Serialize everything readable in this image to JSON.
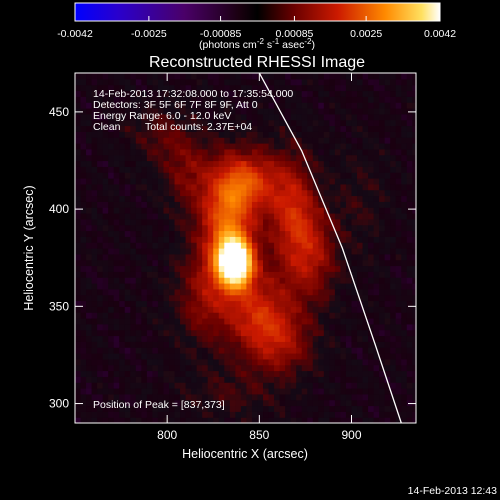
{
  "chart_data": {
    "type": "heatmap",
    "title": "Reconstructed RHESSI Image",
    "xlabel": "Heliocentric X (arcsec)",
    "ylabel": "Heliocentric Y (arcsec)",
    "xlim": [
      750,
      935
    ],
    "ylim": [
      290,
      470
    ],
    "xticks": [
      800,
      850,
      900
    ],
    "yticks": [
      300,
      350,
      400,
      450
    ],
    "grid": false,
    "colorbar": {
      "range": [
        -0.0042,
        0.0042
      ],
      "tick_values": [
        -0.0042,
        -0.0025,
        -0.00085,
        0.00085,
        0.0025,
        0.0042
      ],
      "tick_labels": [
        "-0.0042",
        "-0.0025",
        "-0.00085",
        "0.00085",
        "0.0025",
        "0.0042"
      ],
      "units_prefix": "(photons cm",
      "units_exp1": "-2",
      "units_mid": " s",
      "units_exp2": "-1",
      "units_mid2": " asec",
      "units_exp3": "-2",
      "units_suffix": ")"
    },
    "annotations": {
      "time_range": "14-Feb-2013 17:32:08.000 to 17:35:54.000",
      "detectors": "Detectors: 3F 5F 6F 7F 8F 9F, Att 0",
      "energy_range": "Energy Range: 6.0 - 12.0 keV",
      "clean_label": "Clean",
      "total_counts": "Total counts: 2.37E+04",
      "peak_position": "Position of Peak = [837,373]"
    },
    "peak": {
      "x": 837,
      "y": 373,
      "value": 0.0042
    },
    "limb": [
      {
        "x": 850,
        "y": 470
      },
      {
        "x": 873,
        "y": 430
      },
      {
        "x": 895,
        "y": 380
      },
      {
        "x": 913,
        "y": 330
      },
      {
        "x": 927,
        "y": 290
      }
    ],
    "emission_blobs": [
      {
        "x": 837,
        "y": 373,
        "amp": 1.0,
        "sx": 7,
        "sy": 9
      },
      {
        "x": 832,
        "y": 395,
        "amp": 0.55,
        "sx": 11,
        "sy": 20
      },
      {
        "x": 845,
        "y": 415,
        "amp": 0.42,
        "sx": 12,
        "sy": 12
      },
      {
        "x": 868,
        "y": 398,
        "amp": 0.42,
        "sx": 10,
        "sy": 22
      },
      {
        "x": 880,
        "y": 375,
        "amp": 0.3,
        "sx": 10,
        "sy": 18
      },
      {
        "x": 850,
        "y": 345,
        "amp": 0.45,
        "sx": 13,
        "sy": 16
      },
      {
        "x": 820,
        "y": 355,
        "amp": 0.3,
        "sx": 12,
        "sy": 18
      },
      {
        "x": 810,
        "y": 420,
        "amp": 0.25,
        "sx": 10,
        "sy": 14
      },
      {
        "x": 795,
        "y": 440,
        "amp": 0.18,
        "sx": 12,
        "sy": 10
      },
      {
        "x": 865,
        "y": 330,
        "amp": 0.25,
        "sx": 12,
        "sy": 12
      },
      {
        "x": 835,
        "y": 305,
        "amp": 0.14,
        "sx": 18,
        "sy": 10
      },
      {
        "x": 905,
        "y": 405,
        "amp": 0.12,
        "sx": 10,
        "sy": 20
      }
    ]
  },
  "footer": {
    "timestamp": "14-Feb-2013 12:43"
  }
}
